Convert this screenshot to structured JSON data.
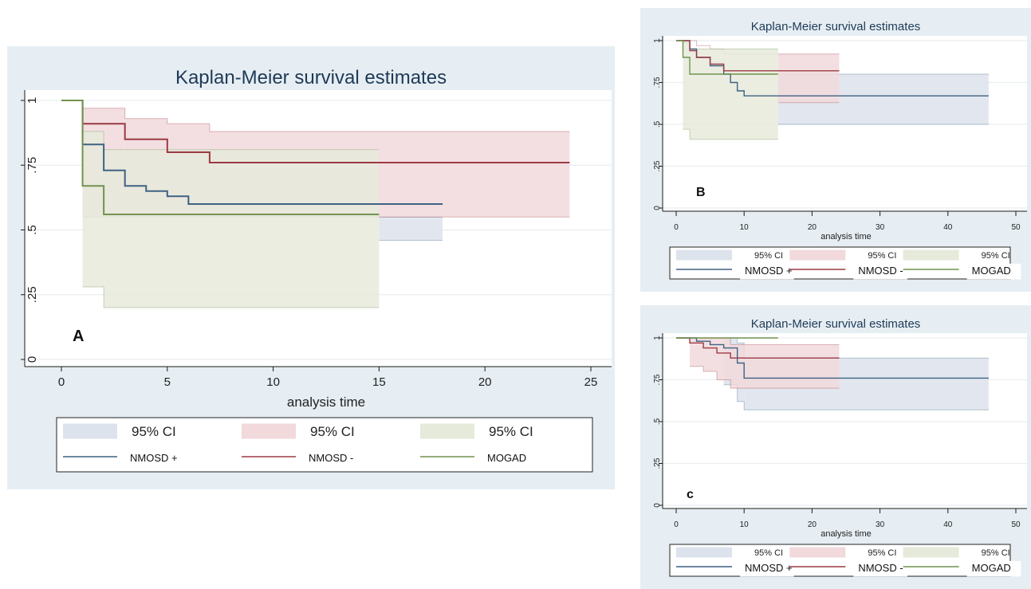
{
  "colors": {
    "panel_bg": "#e6eef3",
    "plot_bg": "#ffffff",
    "grid": "#e9eef2",
    "axis": "#1a1a1a",
    "nmosd_pos": "#3e6282",
    "nmosd_neg": "#9b3a43",
    "mogad": "#71924f",
    "ci_nmosd_pos": "#dde3ec",
    "ci_nmosd_neg": "#f1d9dc",
    "ci_mogad": "#e6eadb"
  },
  "chart_data": [
    {
      "id": "A",
      "type": "line",
      "step": true,
      "title": "Kaplan-Meier survival estimates",
      "panel_label": "A",
      "xlabel": "analysis time",
      "ylabel": "",
      "xlim": [
        0,
        25
      ],
      "ylim": [
        0,
        1
      ],
      "xticks": [
        0,
        5,
        10,
        15,
        20,
        25
      ],
      "yticks": [
        0,
        0.25,
        0.5,
        0.75,
        1
      ],
      "ytick_labels": [
        "0",
        ".25",
        ".5",
        ".75",
        "1"
      ],
      "grid": true,
      "legend_position": "bottom",
      "legend": {
        "ci_label": "95% CI",
        "series_labels": [
          "NMOSD +",
          "NMOSD -",
          "MOGAD"
        ]
      },
      "series": [
        {
          "name": "NMOSD +",
          "color_key": "nmosd_pos",
          "points": [
            [
              0,
              1
            ],
            [
              1,
              0.83
            ],
            [
              2,
              0.73
            ],
            [
              3,
              0.67
            ],
            [
              4,
              0.65
            ],
            [
              5,
              0.63
            ],
            [
              6,
              0.6
            ],
            [
              18,
              0.6
            ]
          ],
          "ci": {
            "color_key": "ci_nmosd_pos",
            "upper": [
              [
                15,
                0.55
              ],
              [
                18,
                0.55
              ]
            ],
            "lower": [
              [
                15,
                0.46
              ],
              [
                18,
                0.46
              ]
            ]
          }
        },
        {
          "name": "NMOSD -",
          "color_key": "nmosd_neg",
          "points": [
            [
              0,
              1
            ],
            [
              1,
              0.91
            ],
            [
              3,
              0.85
            ],
            [
              5,
              0.8
            ],
            [
              7,
              0.76
            ],
            [
              24,
              0.76
            ]
          ],
          "ci": {
            "color_key": "ci_nmosd_neg",
            "upper": [
              [
                1,
                0.97
              ],
              [
                3,
                0.93
              ],
              [
                5,
                0.91
              ],
              [
                7,
                0.88
              ],
              [
                24,
                0.88
              ]
            ],
            "lower": [
              [
                1,
                0.55
              ],
              [
                24,
                0.55
              ]
            ]
          }
        },
        {
          "name": "MOGAD",
          "color_key": "mogad",
          "points": [
            [
              0,
              1
            ],
            [
              1,
              0.67
            ],
            [
              2,
              0.56
            ],
            [
              15,
              0.56
            ]
          ],
          "ci": {
            "color_key": "ci_mogad",
            "upper": [
              [
                1,
                0.88
              ],
              [
                2,
                0.81
              ],
              [
                15,
                0.81
              ]
            ],
            "lower": [
              [
                1,
                0.28
              ],
              [
                2,
                0.2
              ],
              [
                15,
                0.2
              ]
            ]
          }
        }
      ]
    },
    {
      "id": "B",
      "type": "line",
      "step": true,
      "title": "Kaplan-Meier survival estimates",
      "panel_label": "B",
      "xlabel": "analysis time",
      "ylabel": "",
      "xlim": [
        0,
        50
      ],
      "ylim": [
        0,
        1
      ],
      "xticks": [
        0,
        10,
        20,
        30,
        40,
        50
      ],
      "yticks": [
        0,
        0.25,
        0.5,
        0.75,
        1
      ],
      "ytick_labels": [
        "0",
        ".25",
        ".5",
        ".75",
        "1"
      ],
      "grid": true,
      "legend_position": "bottom",
      "legend": {
        "ci_label": "95% CI",
        "series_labels": [
          "NMOSD +",
          "NMOSD -",
          "MOGAD"
        ]
      },
      "series": [
        {
          "name": "NMOSD +",
          "color_key": "nmosd_pos",
          "points": [
            [
              0,
              1
            ],
            [
              2,
              0.95
            ],
            [
              3,
              0.9
            ],
            [
              5,
              0.85
            ],
            [
              7,
              0.8
            ],
            [
              8,
              0.75
            ],
            [
              9,
              0.7
            ],
            [
              10,
              0.67
            ],
            [
              46,
              0.67
            ]
          ],
          "ci": {
            "color_key": "ci_nmosd_pos",
            "upper": [
              [
                15,
                0.8
              ],
              [
                46,
                0.8
              ]
            ],
            "lower": [
              [
                15,
                0.5
              ],
              [
                46,
                0.5
              ]
            ]
          }
        },
        {
          "name": "NMOSD -",
          "color_key": "nmosd_neg",
          "points": [
            [
              0,
              1
            ],
            [
              2,
              0.94
            ],
            [
              3,
              0.9
            ],
            [
              5,
              0.86
            ],
            [
              7,
              0.82
            ],
            [
              24,
              0.82
            ]
          ],
          "ci": {
            "color_key": "ci_nmosd_neg",
            "upper": [
              [
                2,
                1
              ],
              [
                3,
                0.97
              ],
              [
                5,
                0.95
              ],
              [
                7,
                0.92
              ],
              [
                24,
                0.92
              ]
            ],
            "lower": [
              [
                15,
                0.63
              ],
              [
                24,
                0.63
              ]
            ]
          }
        },
        {
          "name": "MOGAD",
          "color_key": "mogad",
          "points": [
            [
              0,
              1
            ],
            [
              1,
              0.9
            ],
            [
              2,
              0.8
            ],
            [
              15,
              0.8
            ]
          ],
          "ci": {
            "color_key": "ci_mogad",
            "upper": [
              [
                1,
                0.99
              ],
              [
                2,
                0.95
              ],
              [
                15,
                0.95
              ]
            ],
            "lower": [
              [
                1,
                0.47
              ],
              [
                2,
                0.41
              ],
              [
                15,
                0.41
              ]
            ]
          }
        }
      ]
    },
    {
      "id": "C",
      "type": "line",
      "step": true,
      "title": "Kaplan-Meier survival estimates",
      "panel_label": "c",
      "xlabel": "analysis time",
      "ylabel": "",
      "xlim": [
        0,
        50
      ],
      "ylim": [
        0,
        1
      ],
      "xticks": [
        0,
        10,
        20,
        30,
        40,
        50
      ],
      "yticks": [
        0,
        0.25,
        0.5,
        0.75,
        1
      ],
      "ytick_labels": [
        "0",
        ".25",
        ".5",
        ".75",
        "1"
      ],
      "grid": true,
      "legend_position": "bottom",
      "legend": {
        "ci_label": "95% CI",
        "series_labels": [
          "NMOSD +",
          "NMOSD -",
          "MOGAD"
        ]
      },
      "series": [
        {
          "name": "NMOSD +",
          "color_key": "nmosd_pos",
          "points": [
            [
              0,
              1
            ],
            [
              3,
              0.98
            ],
            [
              5,
              0.96
            ],
            [
              7,
              0.94
            ],
            [
              9,
              0.85
            ],
            [
              10,
              0.76
            ],
            [
              46,
              0.76
            ]
          ],
          "ci": {
            "color_key": "ci_nmosd_pos",
            "upper": [
              [
                3,
                1
              ],
              [
                9,
                0.97
              ],
              [
                10,
                0.88
              ],
              [
                46,
                0.88
              ]
            ],
            "lower": [
              [
                7,
                0.72
              ],
              [
                9,
                0.62
              ],
              [
                10,
                0.57
              ],
              [
                46,
                0.57
              ]
            ]
          }
        },
        {
          "name": "NMOSD -",
          "color_key": "nmosd_neg",
          "points": [
            [
              0,
              1
            ],
            [
              2,
              0.97
            ],
            [
              4,
              0.94
            ],
            [
              6,
              0.91
            ],
            [
              8,
              0.88
            ],
            [
              24,
              0.88
            ]
          ],
          "ci": {
            "color_key": "ci_nmosd_neg",
            "upper": [
              [
                2,
                1
              ],
              [
                8,
                0.96
              ],
              [
                24,
                0.96
              ]
            ],
            "lower": [
              [
                2,
                0.83
              ],
              [
                4,
                0.8
              ],
              [
                6,
                0.75
              ],
              [
                8,
                0.7
              ],
              [
                24,
                0.7
              ]
            ]
          }
        },
        {
          "name": "MOGAD",
          "color_key": "mogad",
          "points": [
            [
              0,
              1
            ],
            [
              15,
              1
            ]
          ],
          "ci": null
        }
      ]
    }
  ]
}
